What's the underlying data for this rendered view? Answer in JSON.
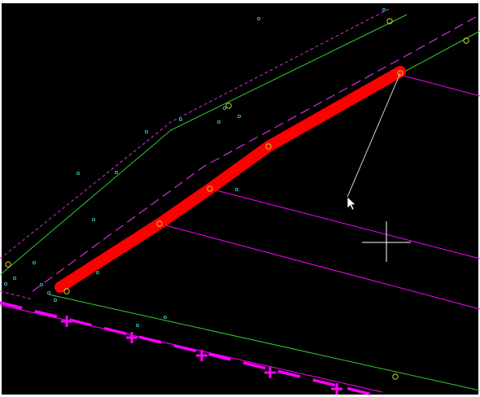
{
  "window": {
    "title": ""
  },
  "theme": {
    "canvas_background": "#000000",
    "frame_color": "#ffffff",
    "parcel_line_color": "#ff33aa",
    "alignment_line_color": "#33cc33",
    "setback_line_color": "#cc33cc",
    "row_line_color": "#ff00ff",
    "highlight_color": "#ff0000",
    "vertex_marker_color": "#cccc33",
    "point_marker_color": "#33cccc",
    "leader_line_color": "#cccccc",
    "crosshair_color": "#ffffff"
  },
  "icons": {
    "cursor": "arrow-pointer-icon",
    "crosshair": "crosshair-icon",
    "vertex": "circle-marker-icon",
    "point": "small-dot-icon"
  },
  "drawing": {
    "selected_polyline": "red-highlighted-polyline",
    "tool": "leader-pick"
  }
}
